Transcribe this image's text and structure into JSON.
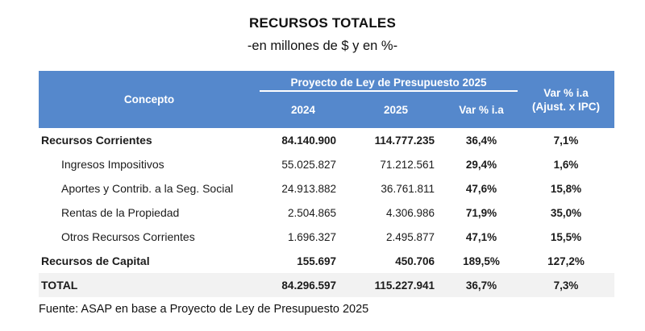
{
  "title": "RECURSOS TOTALES",
  "subtitle": "-en millones de $ y en %-",
  "header": {
    "concepto": "Concepto",
    "group": "Proyecto de Ley de Presupuesto 2025",
    "y2024": "2024",
    "y2025": "2025",
    "var_ia": "Var % i.a",
    "var_ipc_line1": "Var % i.a",
    "var_ipc_line2": "(Ajust. x IPC)"
  },
  "chart_data": {
    "type": "table",
    "title": "RECURSOS TOTALES",
    "subtitle": "-en millones de $ y en %-",
    "column_group": {
      "label": "Proyecto de Ley de Presupuesto 2025",
      "spans": [
        "2024",
        "2025",
        "Var % i.a"
      ]
    },
    "columns": [
      "Concepto",
      "2024",
      "2025",
      "Var % i.a",
      "Var % i.a (Ajust. x IPC)"
    ],
    "rows": [
      [
        "Recursos Corrientes",
        "84.140.900",
        "114.777.235",
        "36,4%",
        "7,1%"
      ],
      [
        "Ingresos Impositivos",
        "55.025.827",
        "71.212.561",
        "29,4%",
        "1,6%"
      ],
      [
        "Aportes y Contrib. a la Seg. Social",
        "24.913.882",
        "36.761.811",
        "47,6%",
        "15,8%"
      ],
      [
        "Rentas de la Propiedad",
        "2.504.865",
        "4.306.986",
        "71,9%",
        "35,0%"
      ],
      [
        "Otros Recursos Corrientes",
        "1.696.327",
        "2.495.877",
        "47,1%",
        "15,5%"
      ],
      [
        "Recursos de Capital",
        "155.697",
        "450.706",
        "189,5%",
        "127,2%"
      ],
      [
        "TOTAL",
        "84.296.597",
        "115.227.941",
        "36,7%",
        "7,3%"
      ]
    ],
    "source": "Fuente: ASAP en base a Proyecto de Ley de Presupuesto 2025"
  },
  "footer": "Fuente: ASAP en base a Proyecto de Ley de Presupuesto 2025",
  "colors": {
    "header_bg": "#5588CC",
    "header_text": "#FFFFFF",
    "total_row_bg": "#F2F2F2",
    "text": "#1B1B1B"
  }
}
